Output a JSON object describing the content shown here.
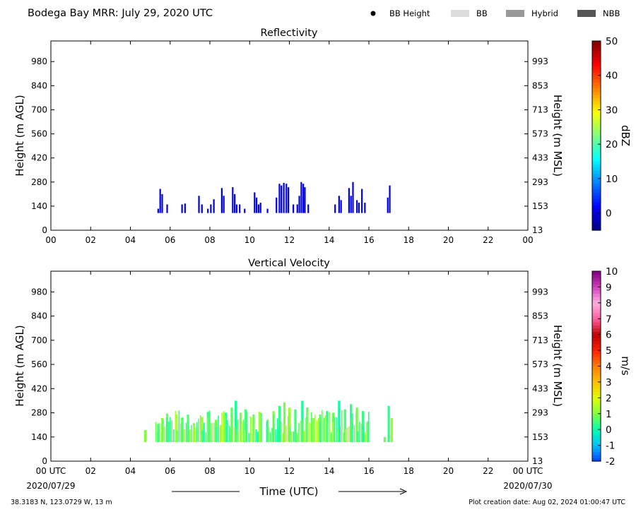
{
  "header": {
    "title": "Bodega Bay MRR:  July 29, 2020 UTC",
    "legend": [
      {
        "label": "BB Height",
        "kind": "dot",
        "color": "#000000"
      },
      {
        "label": "BB",
        "kind": "box",
        "color": "#dcdcdc"
      },
      {
        "label": "Hybrid",
        "kind": "box",
        "color": "#999999"
      },
      {
        "label": "NBB",
        "kind": "box",
        "color": "#555555"
      }
    ]
  },
  "footer": {
    "location": "38.3183 N, 123.0729 W, 13 m",
    "created": "Plot creation date: Aug 02, 2024 01:00:47 UTC",
    "xlabel": "Time (UTC)",
    "start_date": "2020/07/29",
    "end_date": "2020/07/30"
  },
  "chart_data": [
    {
      "type": "heatmap",
      "title": "Reflectivity",
      "xlabel": "",
      "ylabel_left": "Height (m AGL)",
      "ylabel_right": "Height (m MSL)",
      "xlim": [
        0,
        24
      ],
      "ylim": [
        0,
        1100
      ],
      "x_ticks": [
        "00",
        "02",
        "04",
        "06",
        "08",
        "10",
        "12",
        "14",
        "16",
        "18",
        "20",
        "22",
        "00"
      ],
      "y_ticks_left": [
        0,
        140,
        280,
        420,
        560,
        700,
        840,
        980
      ],
      "y_ticks_right": [
        13,
        153,
        293,
        433,
        573,
        713,
        853,
        993
      ],
      "colorbar": {
        "label": "dBZ",
        "min": -5,
        "max": 50,
        "ticks": [
          0,
          10,
          20,
          30,
          40,
          50
        ],
        "colors": [
          "#00007f",
          "#0000ff",
          "#0080ff",
          "#00ffff",
          "#80ff80",
          "#ffff00",
          "#ff8000",
          "#ff0000",
          "#7f0000"
        ]
      },
      "columns": [
        [
          5.4,
          100,
          125,
          0
        ],
        [
          5.5,
          100,
          240,
          0
        ],
        [
          5.6,
          100,
          210,
          0
        ],
        [
          5.85,
          100,
          150,
          0
        ],
        [
          6.6,
          100,
          150,
          0
        ],
        [
          6.75,
          100,
          155,
          0
        ],
        [
          7.45,
          100,
          200,
          0
        ],
        [
          7.6,
          100,
          150,
          0
        ],
        [
          7.9,
          100,
          125,
          0
        ],
        [
          8.05,
          100,
          150,
          0
        ],
        [
          8.2,
          100,
          180,
          0
        ],
        [
          8.6,
          100,
          245,
          0
        ],
        [
          8.7,
          100,
          200,
          0
        ],
        [
          9.15,
          100,
          250,
          0
        ],
        [
          9.25,
          100,
          210,
          0
        ],
        [
          9.35,
          100,
          150,
          0
        ],
        [
          9.5,
          100,
          150,
          0
        ],
        [
          9.75,
          100,
          125,
          0
        ],
        [
          10.25,
          100,
          220,
          0
        ],
        [
          10.35,
          100,
          190,
          0
        ],
        [
          10.45,
          100,
          150,
          0
        ],
        [
          10.55,
          100,
          160,
          0
        ],
        [
          10.9,
          100,
          125,
          0
        ],
        [
          11.35,
          100,
          190,
          0
        ],
        [
          11.5,
          100,
          270,
          0
        ],
        [
          11.6,
          100,
          260,
          0
        ],
        [
          11.72,
          100,
          275,
          0
        ],
        [
          11.85,
          100,
          270,
          0
        ],
        [
          11.95,
          100,
          250,
          0
        ],
        [
          12.2,
          100,
          150,
          0
        ],
        [
          12.4,
          100,
          150,
          0
        ],
        [
          12.5,
          100,
          200,
          0
        ],
        [
          12.6,
          100,
          280,
          0
        ],
        [
          12.7,
          100,
          270,
          0
        ],
        [
          12.78,
          100,
          250,
          0
        ],
        [
          12.95,
          100,
          150,
          0
        ],
        [
          14.3,
          100,
          150,
          0
        ],
        [
          14.5,
          100,
          200,
          0
        ],
        [
          14.6,
          100,
          175,
          0
        ],
        [
          15.0,
          100,
          245,
          0
        ],
        [
          15.1,
          100,
          200,
          0
        ],
        [
          15.2,
          100,
          280,
          0
        ],
        [
          15.4,
          100,
          175,
          0
        ],
        [
          15.5,
          100,
          160,
          0
        ],
        [
          15.65,
          100,
          240,
          0
        ],
        [
          15.8,
          100,
          160,
          0
        ],
        [
          16.95,
          100,
          190,
          0
        ],
        [
          17.05,
          100,
          260,
          0
        ]
      ]
    },
    {
      "type": "heatmap",
      "title": "Vertical Velocity",
      "xlabel": "",
      "ylabel_left": "Height (m AGL)",
      "ylabel_right": "Height (m MSL)",
      "xlim": [
        0,
        24
      ],
      "ylim": [
        0,
        1100
      ],
      "x_ticks": [
        "00 UTC",
        "02",
        "04",
        "06",
        "08",
        "10",
        "12",
        "14",
        "16",
        "18",
        "20",
        "22",
        "00 UTC"
      ],
      "y_ticks_left": [
        0,
        140,
        280,
        420,
        560,
        700,
        840,
        980
      ],
      "y_ticks_right": [
        13,
        153,
        293,
        433,
        573,
        713,
        853,
        993
      ],
      "colorbar": {
        "label": "m/s",
        "min": -2,
        "max": 10,
        "ticks": [
          -2,
          -1,
          0,
          1,
          2,
          3,
          4,
          5,
          6,
          7,
          8,
          9,
          10
        ],
        "colors": [
          "#0040ff",
          "#00c0ff",
          "#00ffb0",
          "#80ff40",
          "#e0ff00",
          "#ffc000",
          "#ff8000",
          "#ff2000",
          "#c00000",
          "#ff60a0",
          "#ffb0e0",
          "#d040c0",
          "#800080"
        ]
      },
      "band_range": [
        4.7,
        17.3
      ],
      "band_color": "#2ee8a8",
      "columns": [
        [
          4.75,
          110,
          180,
          1.0
        ],
        [
          5.4,
          110,
          215,
          0.5
        ],
        [
          5.6,
          110,
          250,
          1.2
        ],
        [
          5.85,
          110,
          275,
          0.8
        ],
        [
          6.3,
          110,
          270,
          1.4
        ],
        [
          6.6,
          110,
          250,
          1.0
        ],
        [
          6.9,
          110,
          270,
          0.6
        ],
        [
          7.2,
          110,
          220,
          1.1
        ],
        [
          7.6,
          110,
          255,
          1.3
        ],
        [
          7.9,
          110,
          285,
          0.4
        ],
        [
          8.3,
          110,
          240,
          0.9
        ],
        [
          8.55,
          110,
          210,
          1.5
        ],
        [
          8.8,
          110,
          280,
          0.3
        ],
        [
          9.1,
          110,
          310,
          0.7
        ],
        [
          9.3,
          110,
          350,
          0.2
        ],
        [
          9.55,
          110,
          280,
          1.0
        ],
        [
          9.8,
          110,
          300,
          0.5
        ],
        [
          10.2,
          110,
          270,
          0.8
        ],
        [
          10.5,
          110,
          285,
          1.2
        ],
        [
          10.9,
          110,
          240,
          0.6
        ],
        [
          11.2,
          110,
          290,
          1.1
        ],
        [
          11.5,
          110,
          320,
          0.4
        ],
        [
          11.75,
          110,
          340,
          0.9
        ],
        [
          12.0,
          110,
          310,
          1.3
        ],
        [
          12.3,
          110,
          300,
          0.5
        ],
        [
          12.65,
          110,
          350,
          0.2
        ],
        [
          12.9,
          110,
          310,
          0.7
        ],
        [
          13.2,
          110,
          250,
          1.0
        ],
        [
          13.55,
          110,
          270,
          0.6
        ],
        [
          13.9,
          110,
          290,
          0.3
        ],
        [
          14.2,
          110,
          280,
          0.8
        ],
        [
          14.5,
          110,
          350,
          0.1
        ],
        [
          14.8,
          110,
          300,
          0.5
        ],
        [
          15.1,
          110,
          330,
          0.3
        ],
        [
          15.4,
          110,
          310,
          0.9
        ],
        [
          15.7,
          110,
          290,
          0.4
        ],
        [
          15.95,
          110,
          230,
          0.7
        ],
        [
          16.8,
          110,
          140,
          0.8
        ],
        [
          17.0,
          110,
          320,
          0.3
        ],
        [
          17.15,
          110,
          250,
          1.2
        ]
      ]
    }
  ]
}
